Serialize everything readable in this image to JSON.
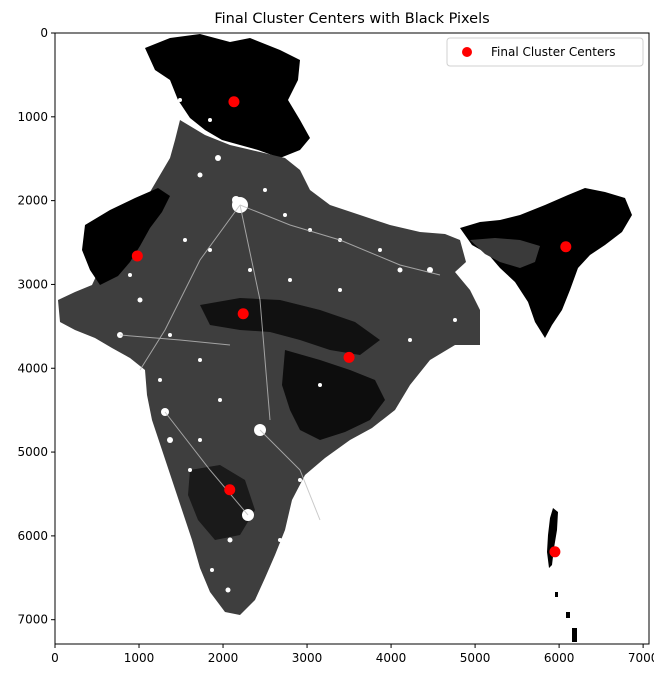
{
  "chart_data": {
    "type": "scatter",
    "title": "Final Cluster Centers with Black Pixels",
    "xlabel": "",
    "ylabel": "",
    "xlim": [
      0,
      7070
    ],
    "ylim": [
      7290,
      0
    ],
    "y_inverted": true,
    "grid": false,
    "xticks": [
      0,
      1000,
      2000,
      3000,
      4000,
      5000,
      6000,
      7000
    ],
    "yticks": [
      0,
      1000,
      2000,
      3000,
      4000,
      5000,
      6000,
      7000
    ],
    "background_image": "night-lights-map-of-india",
    "legend": {
      "position": "top-right",
      "entries": [
        "Final Cluster Centers"
      ]
    },
    "series": [
      {
        "name": "Final Cluster Centers",
        "color": "#ff0000",
        "x": [
          2130,
          980,
          2240,
          3500,
          2080,
          6080,
          5950
        ],
        "y": [
          820,
          2660,
          3350,
          3870,
          5450,
          2550,
          6190
        ]
      }
    ]
  }
}
